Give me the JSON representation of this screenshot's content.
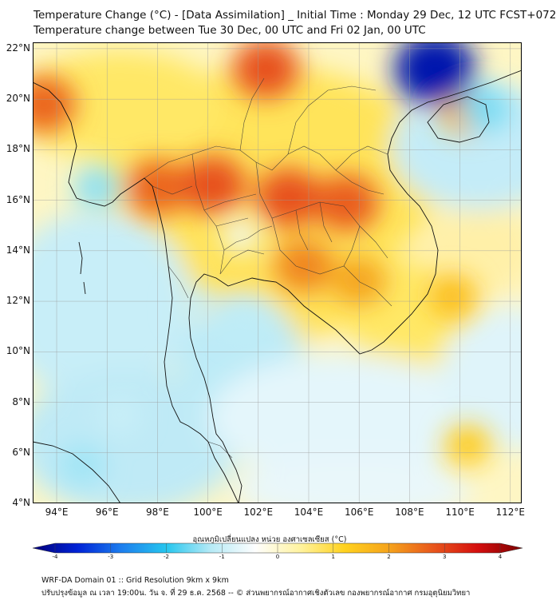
{
  "title": {
    "line1": "Temperature Change (°C) - [Data Assimilation] _ Initial Time : Monday 29 Dec, 12 UTC FCST+072",
    "line2": "Temperature change between Tue 30 Dec, 00 UTC and Fri 02 Jan, 00 UTC"
  },
  "map": {
    "lat_labels": [
      "22°N",
      "20°N",
      "18°N",
      "16°N",
      "14°N",
      "12°N",
      "10°N",
      "8°N",
      "6°N",
      "4°N"
    ],
    "lat_values": [
      22,
      20,
      18,
      16,
      14,
      12,
      10,
      8,
      6,
      4
    ],
    "lon_labels": [
      "94°E",
      "96°E",
      "98°E",
      "100°E",
      "102°E",
      "104°E",
      "106°E",
      "108°E",
      "110°E",
      "112°E"
    ],
    "lon_values": [
      94,
      96,
      98,
      100,
      102,
      104,
      106,
      108,
      110,
      112
    ],
    "lon_range": [
      93.05,
      112.45
    ],
    "lat_range": [
      4,
      22.25
    ],
    "variable": "temperature change",
    "unit": "°C",
    "anomaly_regions": [
      {
        "lon": 93.5,
        "lat": 19.8,
        "value": 2.4
      },
      {
        "lon": 102.3,
        "lat": 21.2,
        "value": 2.6
      },
      {
        "lon": 98.0,
        "lat": 16.5,
        "value": 2.4
      },
      {
        "lon": 100.2,
        "lat": 16.6,
        "value": 2.6
      },
      {
        "lon": 103.2,
        "lat": 16.1,
        "value": 2.6
      },
      {
        "lon": 105.5,
        "lat": 15.9,
        "value": 2.5
      },
      {
        "lon": 103.8,
        "lat": 13.4,
        "value": 2.1
      },
      {
        "lon": 106.0,
        "lat": 12.8,
        "value": 1.8
      },
      {
        "lon": 110.2,
        "lat": 19.5,
        "value": 1.6
      },
      {
        "lon": 109.7,
        "lat": 12.2,
        "value": 1.4
      },
      {
        "lon": 110.3,
        "lat": 6.3,
        "value": 1.2
      },
      {
        "lon": 109.0,
        "lat": 21.2,
        "value": -3.6
      },
      {
        "lon": 111.0,
        "lat": 19.6,
        "value": -1.4
      },
      {
        "lon": 95.6,
        "lat": 16.5,
        "value": -1.3
      },
      {
        "lon": 101.5,
        "lat": 11.2,
        "value": -1.0
      },
      {
        "lon": 95.0,
        "lat": 5.5,
        "value": -1.2
      },
      {
        "lon": 96.5,
        "lat": 7.5,
        "value": -0.9
      },
      {
        "lon": 99.5,
        "lat": 11.8,
        "value": -0.9
      },
      {
        "lon": 101.3,
        "lat": 14.6,
        "value": -0.5
      }
    ]
  },
  "colorbar": {
    "title": "อุณหภูมิเปลี่ยนแปลง หน่วย องศาเซลเซียส (°C)",
    "tick_labels": [
      "-4",
      "-3",
      "-2",
      "-1",
      "0",
      "1",
      "2",
      "3",
      "4"
    ],
    "tick_values": [
      -4,
      -3,
      -2,
      -1,
      0,
      1,
      2,
      3,
      4
    ],
    "range": [
      -4,
      4
    ],
    "colors": [
      "#00007a",
      "#0022d6",
      "#1d7fee",
      "#26c6ee",
      "#b6eaf6",
      "#fefefe",
      "#fff3a0",
      "#ffd21f",
      "#f5a31c",
      "#e8561c",
      "#d40e0e",
      "#7a0000"
    ]
  },
  "footer": {
    "line1": "WRF-DA Domain 01 :: Grid Resolution 9km x 9km",
    "line2": "ปรับปรุงข้อมูล ณ เวลา 19:00น. วัน จ. ที่ 29 ธ.ค. 2568 -- © ส่วนพยากรณ์อากาศเชิงตัวเลข กองพยากรณ์อากาศ กรมอุตุนิยมวิทยา"
  }
}
